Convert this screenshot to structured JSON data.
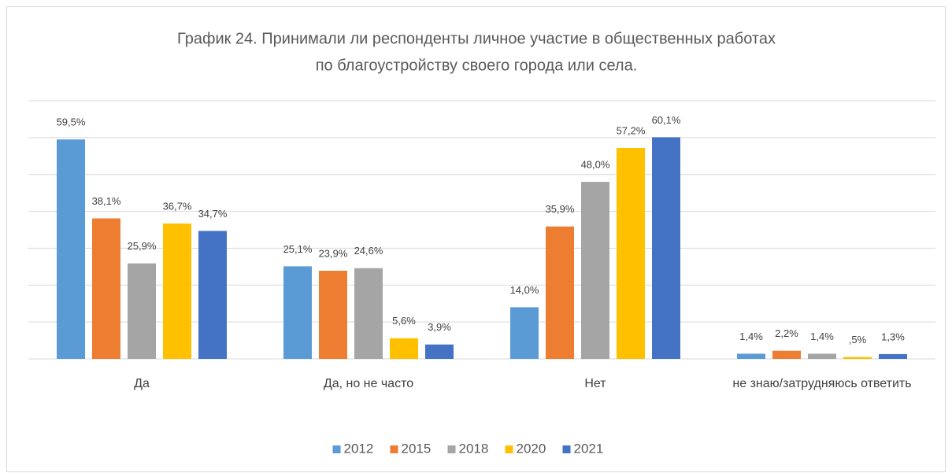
{
  "chart_data": {
    "type": "bar",
    "title": [
      "График 24. Принимали ли респонденты личное участие в общественных работах",
      "по благоустройству своего города или села."
    ],
    "categories": [
      "Да",
      "Да, но не часто",
      "Нет",
      "не знаю/затрудняюсь ответить"
    ],
    "series": [
      {
        "name": "2012",
        "color": "#5b9bd5",
        "values": [
          59.5,
          25.1,
          14.0,
          1.4
        ],
        "value_labels": [
          "59,5%",
          "25,1%",
          "14,0%",
          "1,4%"
        ]
      },
      {
        "name": "2015",
        "color": "#ed7d31",
        "values": [
          38.1,
          23.9,
          35.9,
          2.2
        ],
        "value_labels": [
          "38,1%",
          "23,9%",
          "35,9%",
          "2,2%"
        ]
      },
      {
        "name": "2018",
        "color": "#a5a5a5",
        "values": [
          25.9,
          24.6,
          48.0,
          1.4
        ],
        "value_labels": [
          "25,9%",
          "24,6%",
          "48,0%",
          "1,4%"
        ]
      },
      {
        "name": "2020",
        "color": "#ffc000",
        "values": [
          36.7,
          5.6,
          57.2,
          0.5
        ],
        "value_labels": [
          "36,7%",
          "5,6%",
          "57,2%",
          ",5%"
        ]
      },
      {
        "name": "2021",
        "color": "#4472c4",
        "values": [
          34.7,
          3.9,
          60.1,
          1.3
        ],
        "value_labels": [
          "34,7%",
          "3,9%",
          "60,1%",
          "1,3%"
        ]
      }
    ],
    "ylim": [
      0,
      70
    ],
    "yticks": [
      0,
      10,
      20,
      30,
      40,
      50,
      60,
      70
    ],
    "grid": true,
    "legend": "bottom"
  }
}
